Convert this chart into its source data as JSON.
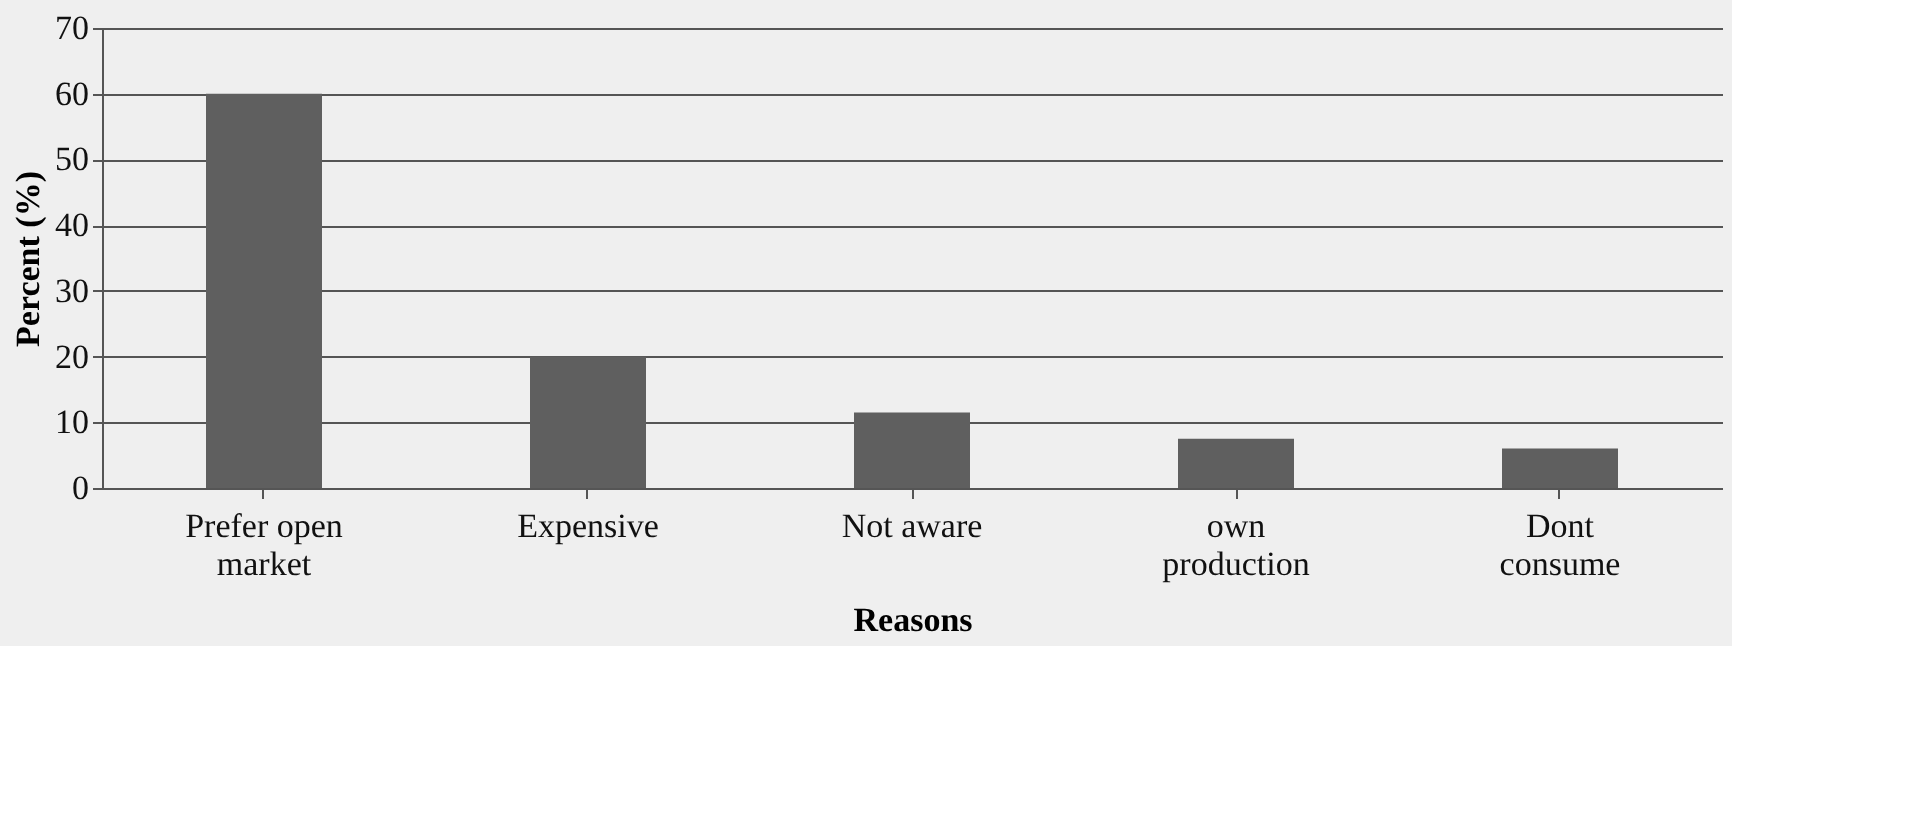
{
  "chart_data": {
    "type": "bar",
    "xlabel": "Reasons",
    "ylabel": "Percent (%)",
    "categories": [
      "Prefer open market",
      "Expensive",
      "Not aware",
      "own production",
      "Dont consume"
    ],
    "values": [
      60,
      20,
      11.5,
      7.5,
      6
    ],
    "color": "#5f5f5f",
    "ylim": [
      0,
      70
    ],
    "yticks": [
      0,
      10,
      20,
      30,
      40,
      50,
      60,
      70
    ],
    "grid": "y"
  }
}
